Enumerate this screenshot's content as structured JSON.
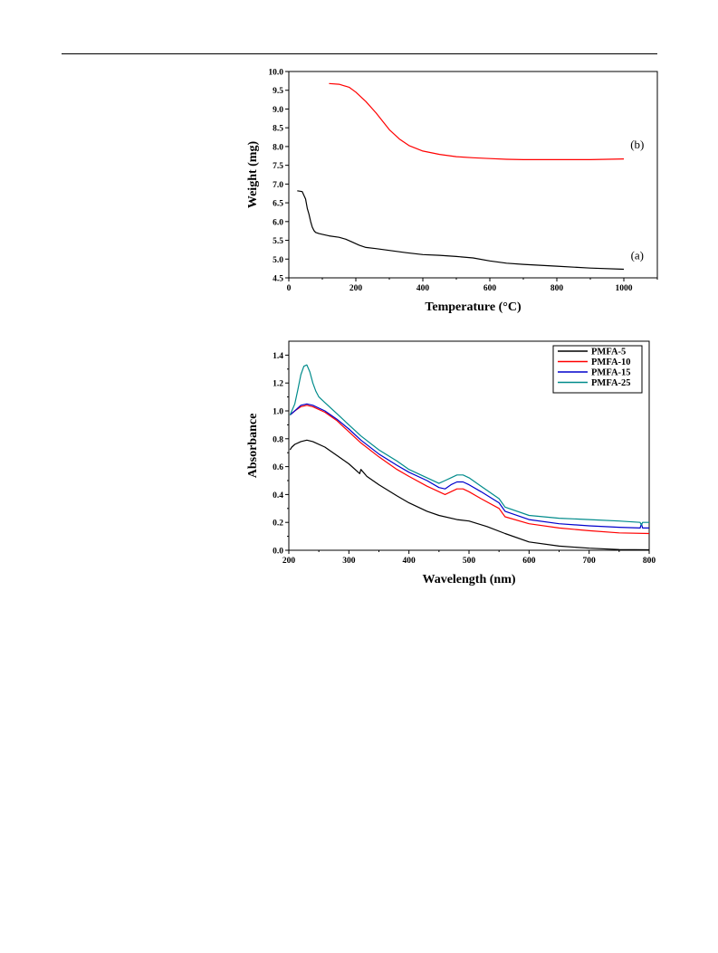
{
  "chart_data": [
    {
      "type": "line",
      "title": "",
      "xlabel": "Temperature (°C)",
      "ylabel": "Weight (mg)",
      "xlim": [
        0,
        1100
      ],
      "ylim": [
        4.5,
        10.0
      ],
      "xticks": [
        0,
        200,
        400,
        600,
        800,
        1000
      ],
      "yticks": [
        "4.5",
        "5.0",
        "5.5",
        "6.0",
        "6.5",
        "7.0",
        "7.5",
        "8.0",
        "8.5",
        "9.0",
        "9.5",
        "10.0"
      ],
      "annotations": [
        {
          "text": "(b)",
          "x": 1040,
          "y": 7.95
        },
        {
          "text": "(a)",
          "x": 1040,
          "y": 5.0
        }
      ],
      "series": [
        {
          "color": "#000000",
          "x": [
            25,
            40,
            50,
            55,
            60,
            65,
            70,
            75,
            80,
            90,
            100,
            120,
            150,
            170,
            190,
            210,
            230,
            260,
            300,
            350,
            400,
            450,
            500,
            550,
            600,
            650,
            700,
            800,
            900,
            1000
          ],
          "y": [
            6.82,
            6.8,
            6.6,
            6.35,
            6.2,
            6.0,
            5.85,
            5.76,
            5.71,
            5.68,
            5.66,
            5.62,
            5.58,
            5.53,
            5.45,
            5.37,
            5.31,
            5.28,
            5.23,
            5.17,
            5.12,
            5.1,
            5.07,
            5.03,
            4.95,
            4.89,
            4.86,
            4.81,
            4.76,
            4.73
          ]
        },
        {
          "color": "#ff0000",
          "x": [
            120,
            150,
            180,
            200,
            230,
            260,
            300,
            330,
            360,
            400,
            450,
            500,
            550,
            600,
            650,
            700,
            800,
            900,
            1000
          ],
          "y": [
            9.68,
            9.66,
            9.58,
            9.45,
            9.2,
            8.9,
            8.45,
            8.2,
            8.02,
            7.88,
            7.79,
            7.73,
            7.7,
            7.68,
            7.66,
            7.65,
            7.65,
            7.65,
            7.67
          ]
        }
      ]
    },
    {
      "type": "line",
      "title": "",
      "xlabel": "Wavelength (nm)",
      "ylabel": "Absorbance",
      "xlim": [
        200,
        800
      ],
      "ylim": [
        0.0,
        1.5
      ],
      "xticks": [
        200,
        300,
        400,
        500,
        600,
        700,
        800
      ],
      "yticks": [
        "0.0",
        "0.2",
        "0.4",
        "0.6",
        "0.8",
        "1.0",
        "1.2",
        "1.4"
      ],
      "legend": "top-right",
      "series": [
        {
          "name": "PMFA-5",
          "color": "#000000",
          "x": [
            202,
            205,
            210,
            220,
            230,
            240,
            260,
            280,
            300,
            318,
            320,
            330,
            350,
            380,
            400,
            430,
            450,
            480,
            500,
            530,
            560,
            600,
            650,
            700,
            750,
            800
          ],
          "y": [
            0.72,
            0.74,
            0.76,
            0.78,
            0.79,
            0.78,
            0.74,
            0.68,
            0.62,
            0.55,
            0.58,
            0.53,
            0.47,
            0.39,
            0.34,
            0.28,
            0.25,
            0.22,
            0.21,
            0.17,
            0.12,
            0.06,
            0.03,
            0.015,
            0.005,
            0.003
          ]
        },
        {
          "name": "PMFA-10",
          "color": "#ff0000",
          "x": [
            202,
            210,
            220,
            230,
            240,
            260,
            280,
            300,
            320,
            350,
            380,
            400,
            430,
            450,
            460,
            470,
            480,
            490,
            500,
            520,
            550,
            560,
            600,
            650,
            700,
            750,
            800
          ],
          "y": [
            0.97,
            1.0,
            1.03,
            1.04,
            1.03,
            0.99,
            0.93,
            0.85,
            0.77,
            0.67,
            0.58,
            0.53,
            0.46,
            0.42,
            0.4,
            0.42,
            0.44,
            0.44,
            0.42,
            0.37,
            0.3,
            0.24,
            0.19,
            0.16,
            0.14,
            0.125,
            0.12
          ]
        },
        {
          "name": "PMFA-15",
          "color": "#0000cc",
          "x": [
            202,
            210,
            220,
            230,
            240,
            260,
            280,
            300,
            320,
            350,
            380,
            400,
            430,
            450,
            460,
            470,
            480,
            490,
            500,
            520,
            550,
            560,
            600,
            650,
            700,
            750,
            785,
            787,
            789,
            800
          ],
          "y": [
            0.97,
            1.0,
            1.04,
            1.05,
            1.04,
            1.0,
            0.94,
            0.87,
            0.79,
            0.69,
            0.61,
            0.56,
            0.5,
            0.45,
            0.44,
            0.47,
            0.49,
            0.49,
            0.47,
            0.42,
            0.34,
            0.28,
            0.22,
            0.19,
            0.175,
            0.165,
            0.16,
            0.19,
            0.16,
            0.16
          ]
        },
        {
          "name": "PMFA-25",
          "color": "#008b8b",
          "x": [
            202,
            210,
            215,
            220,
            225,
            230,
            235,
            240,
            245,
            250,
            260,
            280,
            300,
            320,
            350,
            380,
            400,
            430,
            450,
            460,
            470,
            480,
            490,
            500,
            520,
            550,
            560,
            600,
            650,
            700,
            750,
            785,
            787,
            789,
            800
          ],
          "y": [
            0.97,
            1.05,
            1.15,
            1.26,
            1.32,
            1.33,
            1.28,
            1.2,
            1.14,
            1.1,
            1.06,
            0.98,
            0.9,
            0.82,
            0.72,
            0.64,
            0.58,
            0.52,
            0.48,
            0.5,
            0.52,
            0.54,
            0.54,
            0.52,
            0.46,
            0.37,
            0.31,
            0.25,
            0.23,
            0.22,
            0.21,
            0.2,
            0.18,
            0.2,
            0.2
          ]
        }
      ]
    }
  ]
}
